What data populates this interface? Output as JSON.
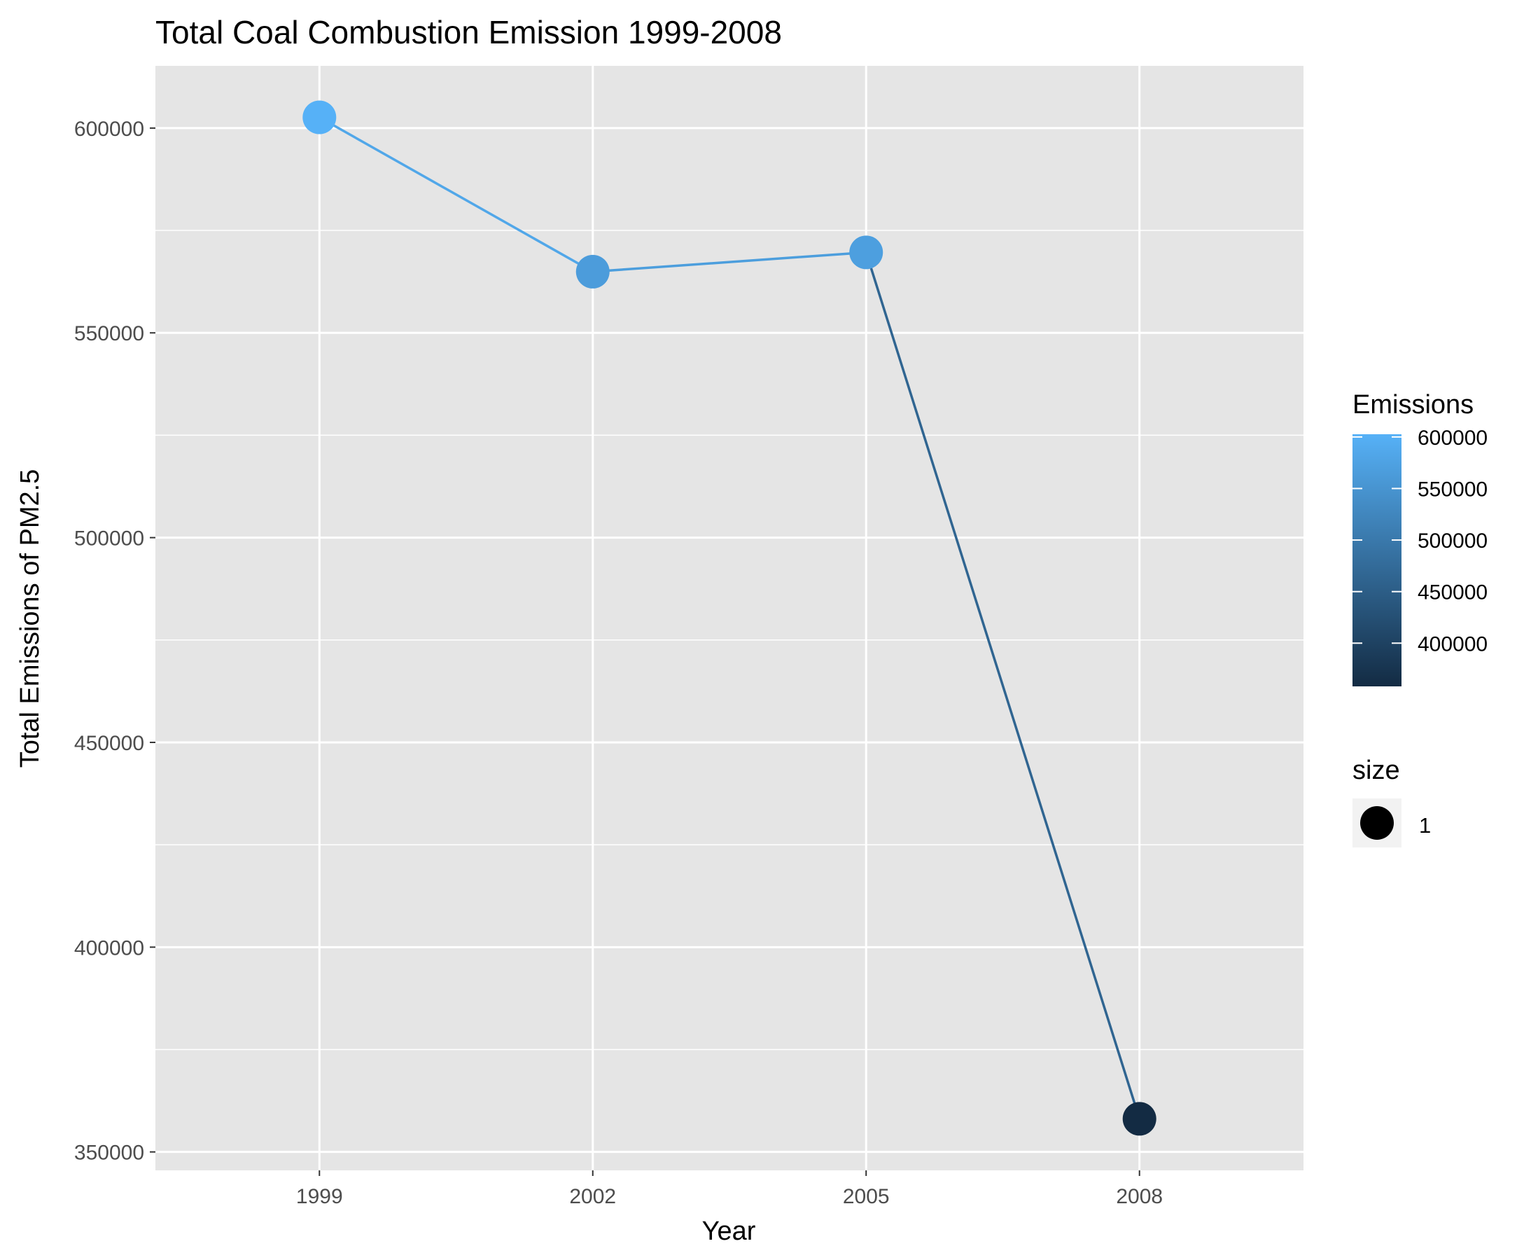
{
  "chart_data": {
    "type": "line",
    "title": "Total Coal Combustion Emission 1999-2008",
    "xlabel": "Year",
    "ylabel": "Total Emissions of PM2.5",
    "x": [
      1999,
      2002,
      2005,
      2008
    ],
    "x_tick_labels": [
      "1999",
      "2002",
      "2005",
      "2008"
    ],
    "y_ticks": [
      350000,
      400000,
      450000,
      500000,
      550000,
      600000
    ],
    "y_tick_labels": [
      "350000",
      "400000",
      "450000",
      "500000",
      "550000",
      "600000"
    ],
    "xlim": [
      1997.2,
      2009.8
    ],
    "ylim": [
      345500,
      615200
    ],
    "grid": true,
    "series": [
      {
        "values": [
          602624,
          564936,
          569654,
          358084
        ]
      }
    ],
    "legends": {
      "placement": "right",
      "color": {
        "title": "Emissions",
        "ticks": [
          400000,
          450000,
          500000,
          550000,
          600000
        ],
        "tick_labels": [
          "400000",
          "450000",
          "500000",
          "550000",
          "600000"
        ],
        "range": [
          358084,
          602624
        ],
        "low_color": "#132B43",
        "high_color": "#56B1F7"
      },
      "size": {
        "title": "size",
        "labels": [
          "1"
        ]
      }
    },
    "colors": {
      "panel_background": "#E5E5E5",
      "grid": "#FFFFFF",
      "axis_text": "#4D4D4D",
      "title_text": "#000000"
    }
  }
}
